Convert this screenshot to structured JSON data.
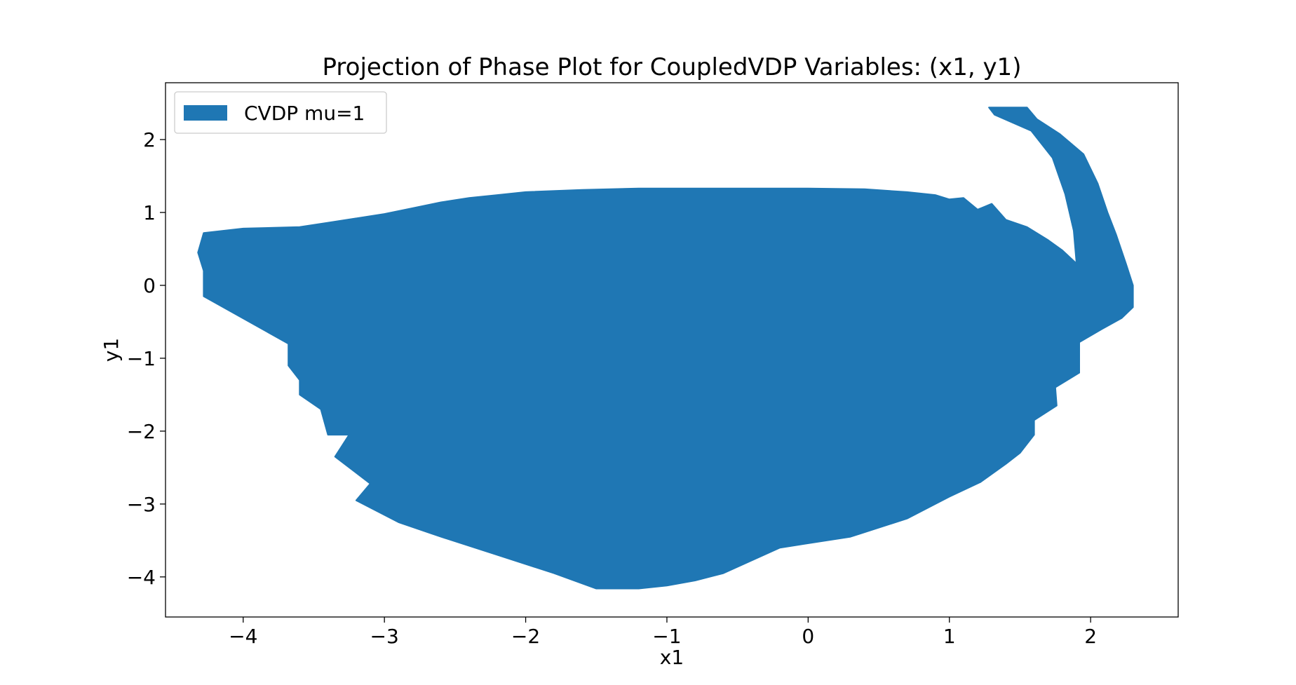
{
  "chart_data": {
    "type": "area",
    "title": "Projection of Phase Plot for CoupledVDP Variables: (x1, y1)",
    "xlabel": "x1",
    "ylabel": "y1",
    "xlim": [
      -4.55,
      2.62
    ],
    "ylim": [
      -4.55,
      2.78
    ],
    "xticks": [
      -4,
      -3,
      -2,
      -1,
      0,
      1,
      2
    ],
    "yticks": [
      -4,
      -3,
      -2,
      -1,
      0,
      1,
      2
    ],
    "xtick_labels": [
      "−4",
      "−3",
      "−2",
      "−1",
      "0",
      "1",
      "2"
    ],
    "ytick_labels": [
      "−4",
      "−3",
      "−2",
      "−1",
      "0",
      "1",
      "2"
    ],
    "grid": false,
    "legend": {
      "position": "top-left",
      "entries": [
        "CVDP mu=1"
      ]
    },
    "series": [
      {
        "name": "CVDP mu=1",
        "color": "#1f77b4",
        "outline": [
          [
            -4.28,
            0.72
          ],
          [
            -4.0,
            0.78
          ],
          [
            -3.6,
            0.8
          ],
          [
            -3.4,
            0.86
          ],
          [
            -3.2,
            0.92
          ],
          [
            -3.0,
            0.98
          ],
          [
            -2.8,
            1.06
          ],
          [
            -2.6,
            1.14
          ],
          [
            -2.4,
            1.2
          ],
          [
            -2.2,
            1.24
          ],
          [
            -2.0,
            1.28
          ],
          [
            -1.6,
            1.31
          ],
          [
            -1.2,
            1.33
          ],
          [
            -0.8,
            1.33
          ],
          [
            -0.4,
            1.33
          ],
          [
            0.0,
            1.33
          ],
          [
            0.4,
            1.32
          ],
          [
            0.7,
            1.28
          ],
          [
            0.9,
            1.24
          ],
          [
            1.0,
            1.18
          ],
          [
            1.1,
            1.2
          ],
          [
            1.2,
            1.04
          ],
          [
            1.3,
            1.12
          ],
          [
            1.4,
            0.9
          ],
          [
            1.55,
            0.8
          ],
          [
            1.7,
            0.62
          ],
          [
            1.8,
            0.48
          ],
          [
            1.9,
            0.3
          ],
          [
            1.88,
            0.75
          ],
          [
            1.82,
            1.25
          ],
          [
            1.73,
            1.75
          ],
          [
            1.58,
            2.12
          ],
          [
            1.32,
            2.34
          ],
          [
            1.28,
            2.44
          ],
          [
            1.55,
            2.44
          ],
          [
            1.62,
            2.28
          ],
          [
            1.78,
            2.08
          ],
          [
            1.95,
            1.8
          ],
          [
            2.05,
            1.4
          ],
          [
            2.12,
            1.0
          ],
          [
            2.18,
            0.7
          ],
          [
            2.25,
            0.3
          ],
          [
            2.3,
            0.0
          ],
          [
            2.3,
            -0.3
          ],
          [
            2.22,
            -0.45
          ],
          [
            2.08,
            -0.6
          ],
          [
            1.92,
            -0.78
          ],
          [
            1.92,
            -1.2
          ],
          [
            1.75,
            -1.4
          ],
          [
            1.76,
            -1.65
          ],
          [
            1.6,
            -1.85
          ],
          [
            1.6,
            -2.05
          ],
          [
            1.5,
            -2.3
          ],
          [
            1.4,
            -2.45
          ],
          [
            1.22,
            -2.7
          ],
          [
            1.0,
            -2.9
          ],
          [
            0.9,
            -3.0
          ],
          [
            0.7,
            -3.2
          ],
          [
            0.3,
            -3.45
          ],
          [
            -0.2,
            -3.6
          ],
          [
            -0.6,
            -3.95
          ],
          [
            -0.8,
            -4.05
          ],
          [
            -1.0,
            -4.12
          ],
          [
            -1.2,
            -4.16
          ],
          [
            -1.5,
            -4.16
          ],
          [
            -1.8,
            -3.95
          ],
          [
            -2.2,
            -3.7
          ],
          [
            -2.6,
            -3.45
          ],
          [
            -2.9,
            -3.25
          ],
          [
            -3.2,
            -2.95
          ],
          [
            -3.1,
            -2.72
          ],
          [
            -3.35,
            -2.35
          ],
          [
            -3.25,
            -2.05
          ],
          [
            -3.4,
            -2.05
          ],
          [
            -3.45,
            -1.7
          ],
          [
            -3.6,
            -1.5
          ],
          [
            -3.6,
            -1.3
          ],
          [
            -3.68,
            -1.1
          ],
          [
            -3.68,
            -0.8
          ],
          [
            -4.28,
            -0.15
          ],
          [
            -4.28,
            0.2
          ],
          [
            -4.32,
            0.45
          ]
        ]
      }
    ]
  }
}
